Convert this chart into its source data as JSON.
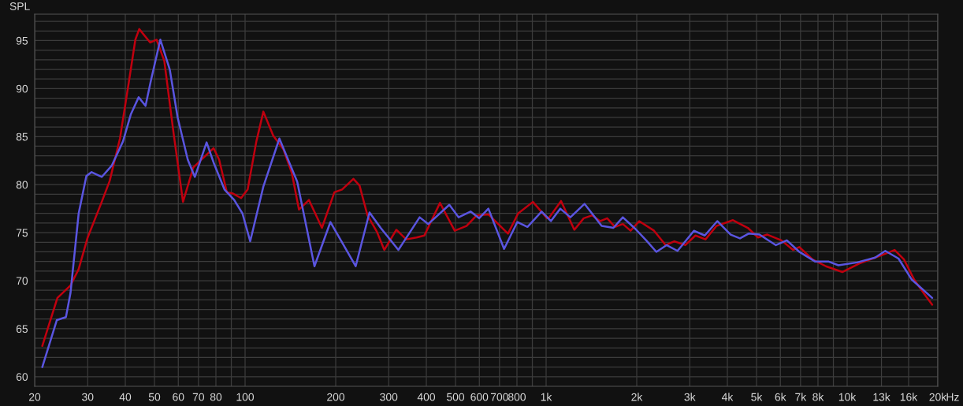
{
  "chart_data": {
    "type": "line",
    "ylabel": "SPL",
    "xlabel": "Hz",
    "log": "x",
    "grid": true,
    "marker": "none",
    "line_style": "solid",
    "xlim": [
      20,
      20000
    ],
    "ylim": [
      59,
      97.75
    ],
    "xticks": [
      20,
      30,
      40,
      50,
      60,
      70,
      80,
      {
        "value": 90,
        "label": null
      },
      100,
      200,
      300,
      400,
      500,
      600,
      700,
      800,
      {
        "value": 900,
        "label": null
      },
      {
        "value": 1000,
        "label": "1k"
      },
      {
        "value": 2000,
        "label": "2k"
      },
      {
        "value": 3000,
        "label": "3k"
      },
      {
        "value": 4000,
        "label": "4k"
      },
      {
        "value": 5000,
        "label": "5k"
      },
      {
        "value": 6000,
        "label": "6k"
      },
      {
        "value": 7000,
        "label": "7k"
      },
      {
        "value": 8000,
        "label": "8k"
      },
      {
        "value": 9000,
        "label": null
      },
      {
        "value": 10000,
        "label": "10k"
      },
      {
        "value": 13000,
        "label": "13k"
      },
      {
        "value": 16000,
        "label": "16k"
      },
      {
        "value": 20000,
        "label": "20k"
      }
    ],
    "yticks": [
      60,
      {
        "value": 61,
        "label": null
      },
      {
        "value": 62,
        "label": null
      },
      {
        "value": 63,
        "label": null
      },
      {
        "value": 64,
        "label": null
      },
      65,
      {
        "value": 66,
        "label": null
      },
      {
        "value": 67,
        "label": null
      },
      {
        "value": 68,
        "label": null
      },
      {
        "value": 69,
        "label": null
      },
      70,
      {
        "value": 71,
        "label": null
      },
      {
        "value": 72,
        "label": null
      },
      {
        "value": 73,
        "label": null
      },
      {
        "value": 74,
        "label": null
      },
      75,
      {
        "value": 76,
        "label": null
      },
      {
        "value": 77,
        "label": null
      },
      {
        "value": 78,
        "label": null
      },
      {
        "value": 79,
        "label": null
      },
      80,
      {
        "value": 81,
        "label": null
      },
      {
        "value": 82,
        "label": null
      },
      {
        "value": 83,
        "label": null
      },
      {
        "value": 84,
        "label": null
      },
      85,
      {
        "value": 86,
        "label": null
      },
      {
        "value": 87,
        "label": null
      },
      {
        "value": 88,
        "label": null
      },
      {
        "value": 89,
        "label": null
      },
      90,
      {
        "value": 91,
        "label": null
      },
      {
        "value": 92,
        "label": null
      },
      {
        "value": 93,
        "label": null
      },
      {
        "value": 94,
        "label": null
      },
      95,
      {
        "value": 96,
        "label": null
      },
      {
        "value": 97,
        "label": null
      }
    ],
    "series": [
      {
        "color": "#c0000f",
        "x": [
          21.2,
          23.8,
          26.3,
          28,
          30,
          33.4,
          35.5,
          38.4,
          41.2,
          43.2,
          44.5,
          48.4,
          50.8,
          53.9,
          57.9,
          62.2,
          67.3,
          72.7,
          78.6,
          82,
          87,
          90.7,
          97,
          102,
          109,
          115,
          124,
          134,
          143,
          151,
          163,
          180,
          198,
          210,
          229,
          240,
          255,
          274,
          290,
          318,
          343,
          371,
          394,
          444,
          497,
          544,
          588,
          643,
          747,
          807,
          904,
          1007,
          1025,
          1121,
          1241,
          1333,
          1423,
          1511,
          1595,
          1693,
          1798,
          1908,
          2038,
          2283,
          2496,
          2666,
          2900,
          3133,
          3384,
          3681,
          4175,
          4677,
          5052,
          5430,
          6046,
          6612,
          6937,
          7679,
          8503,
          9636,
          10990,
          12387,
          13386,
          14377,
          15450,
          16700,
          18050,
          19160
        ],
        "values": [
          63.2,
          68.2,
          69.5,
          71.2,
          74.5,
          78.2,
          80.4,
          84.8,
          90.9,
          95.1,
          96.2,
          94.8,
          95.1,
          92.9,
          85.3,
          78.2,
          81.8,
          82.8,
          83.8,
          82.6,
          79.2,
          79.1,
          78.6,
          79.5,
          84.5,
          87.6,
          85.1,
          83.7,
          81.2,
          77.4,
          78.4,
          75.5,
          79.2,
          79.5,
          80.6,
          79.9,
          76.8,
          75.1,
          73.2,
          75.3,
          74.3,
          74.5,
          74.7,
          78.1,
          75.2,
          75.7,
          76.8,
          76.9,
          74.9,
          77,
          78.2,
          76.5,
          76.6,
          78.3,
          75.3,
          76.5,
          76.8,
          76.2,
          76.5,
          75.6,
          75.9,
          75.2,
          76.2,
          75.2,
          73.7,
          74.1,
          73.7,
          74.7,
          74.3,
          75.7,
          76.3,
          75.5,
          74.5,
          74.8,
          74.2,
          73.2,
          73.5,
          72.2,
          71.5,
          70.9,
          71.8,
          72.4,
          72.8,
          73.2,
          72.2,
          70.1,
          68.6,
          67.5
        ]
      },
      {
        "color": "#5a55e0",
        "x": [
          21.2,
          23.7,
          25.4,
          26.3,
          28,
          29.7,
          30.9,
          33.4,
          36.1,
          39.3,
          41.7,
          44.3,
          46.7,
          48.7,
          52.3,
          56.2,
          59.7,
          64.5,
          68.1,
          74.5,
          78.6,
          85.4,
          92,
          98,
          104,
          115,
          130,
          149,
          170,
          192,
          233,
          259,
          282,
          323,
          380,
          406,
          477,
          512,
          561,
          599,
          643,
          725,
          802,
          867,
          966,
          1037,
          1114,
          1204,
          1341,
          1529,
          1673,
          1798,
          1978,
          2150,
          2324,
          2512,
          2732,
          3097,
          3365,
          3703,
          4101,
          4405,
          4705,
          5113,
          5798,
          6305,
          6937,
          7818,
          8657,
          9352,
          10794,
          12387,
          13386,
          14815,
          16400,
          19160
        ],
        "values": [
          61,
          65.9,
          66.2,
          68.7,
          77,
          80.9,
          81.3,
          80.8,
          82,
          84.5,
          87.3,
          89.1,
          88.2,
          90.9,
          95.1,
          92,
          87,
          82.6,
          80.8,
          84.4,
          82.3,
          79.5,
          78.4,
          77,
          74.1,
          79.8,
          84.8,
          80.3,
          71.5,
          76.1,
          71.5,
          77.1,
          75.5,
          73.2,
          76.6,
          75.9,
          77.9,
          76.6,
          77.2,
          76.5,
          77.5,
          73.3,
          76.1,
          75.6,
          77.2,
          76.2,
          77.5,
          76.6,
          78,
          75.7,
          75.5,
          76.6,
          75.4,
          74.2,
          73,
          73.7,
          73.1,
          75.2,
          74.7,
          76.2,
          74.8,
          74.4,
          74.9,
          74.8,
          73.7,
          74.2,
          73,
          72,
          72,
          71.6,
          71.9,
          72.4,
          73.1,
          72.3,
          70.1,
          68.2
        ]
      }
    ]
  }
}
